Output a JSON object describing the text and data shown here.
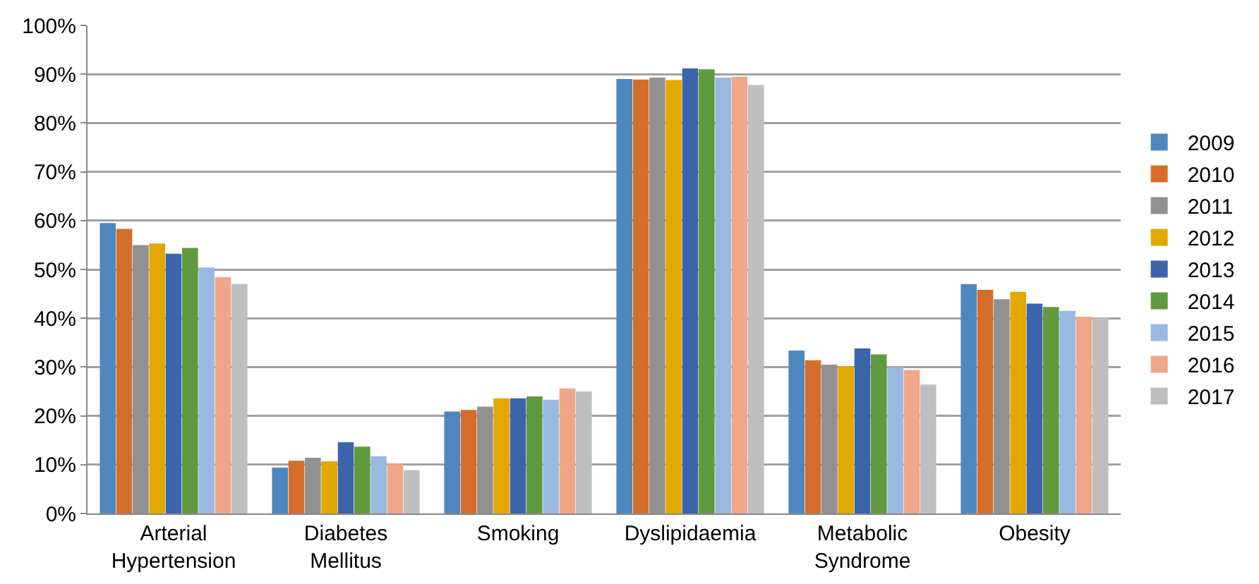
{
  "chart_data": {
    "type": "bar",
    "categories": [
      "Arterial Hypertension",
      "Diabetes Mellitus",
      "Smoking",
      "Dyslipidaemia",
      "Metabolic Syndrome",
      "Obesity"
    ],
    "series": [
      {
        "name": "2009",
        "color": "#4e87bf",
        "values": [
          59.5,
          9.4,
          20.9,
          89,
          33.4,
          47
        ]
      },
      {
        "name": "2010",
        "color": "#d46d2a",
        "values": [
          58.3,
          10.8,
          21.2,
          88.9,
          31.4,
          45.8
        ]
      },
      {
        "name": "2011",
        "color": "#919191",
        "values": [
          55,
          11.4,
          21.9,
          89.3,
          30.5,
          43.9
        ]
      },
      {
        "name": "2012",
        "color": "#e3a800",
        "values": [
          55.3,
          10.7,
          23.6,
          88.8,
          30.1,
          45.4
        ]
      },
      {
        "name": "2013",
        "color": "#3b64ad",
        "values": [
          53.2,
          14.6,
          23.6,
          91.2,
          33.8,
          43
        ]
      },
      {
        "name": "2014",
        "color": "#619a3e",
        "values": [
          54.4,
          13.7,
          24,
          91,
          32.6,
          42.3
        ]
      },
      {
        "name": "2015",
        "color": "#9ab9e0",
        "values": [
          50.4,
          11.7,
          23.3,
          89.3,
          30,
          41.5
        ]
      },
      {
        "name": "2016",
        "color": "#f0a689",
        "values": [
          48.4,
          10.2,
          25.6,
          89.5,
          29.4,
          40.3
        ]
      },
      {
        "name": "2017",
        "color": "#bebebe",
        "values": [
          47,
          8.9,
          25,
          87.8,
          26.4,
          40.1
        ]
      }
    ],
    "ylim": [
      0,
      100
    ],
    "yticks": [
      {
        "value": 0,
        "label": "0%"
      },
      {
        "value": 10,
        "label": "10%"
      },
      {
        "value": 20,
        "label": "20%"
      },
      {
        "value": 30,
        "label": "30%"
      },
      {
        "value": 40,
        "label": "40%"
      },
      {
        "value": 50,
        "label": "50%"
      },
      {
        "value": 60,
        "label": "60%"
      },
      {
        "value": 70,
        "label": "70%"
      },
      {
        "value": 80,
        "label": "80%"
      },
      {
        "value": 90,
        "label": "90%"
      },
      {
        "value": 100,
        "label": "100%"
      }
    ],
    "grid": "y",
    "legend": "right"
  }
}
